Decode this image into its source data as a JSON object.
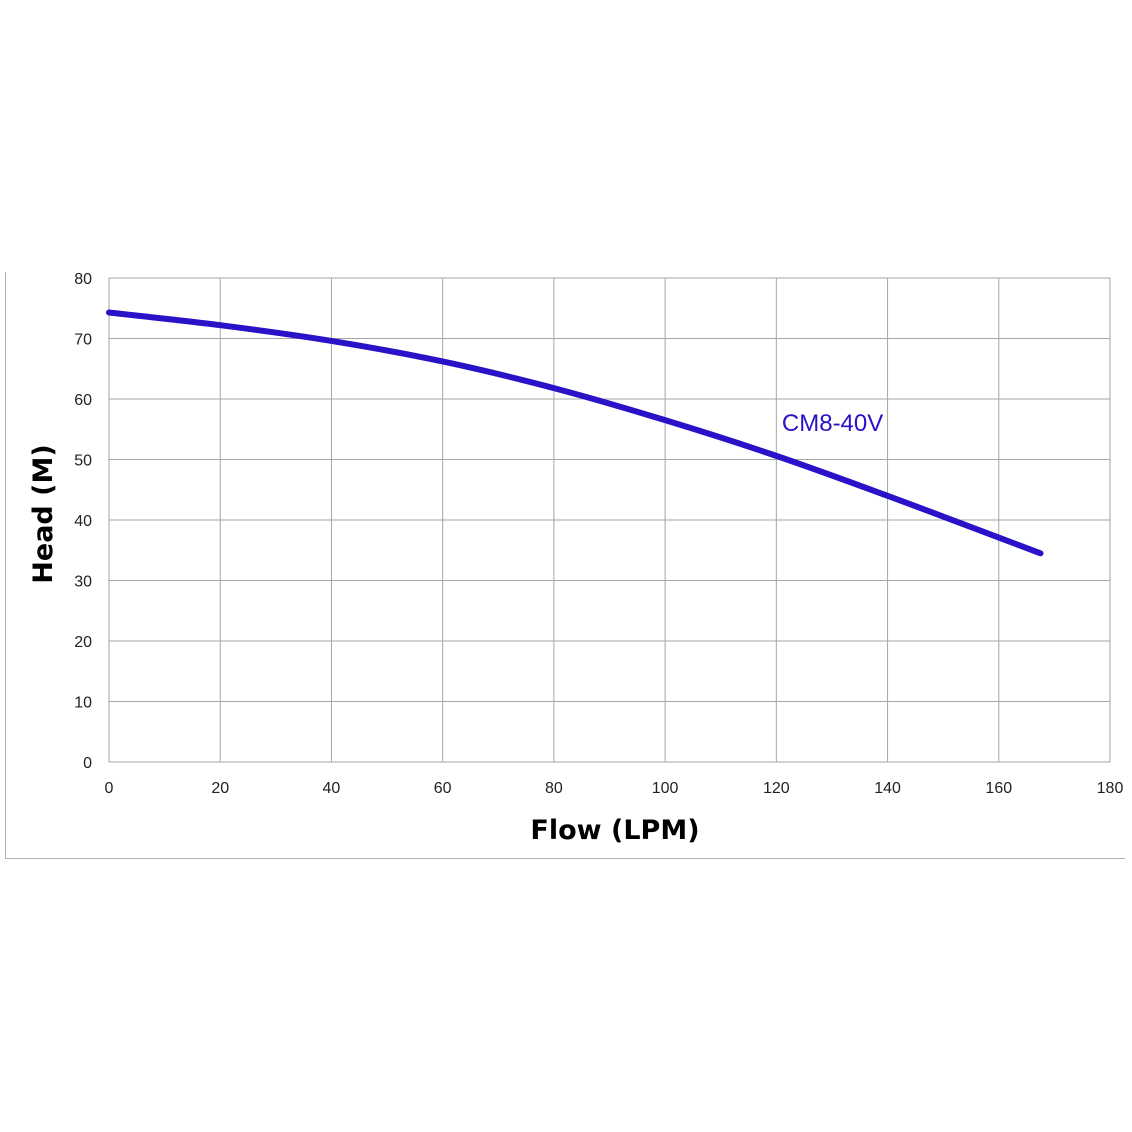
{
  "chart_data": {
    "type": "line",
    "title": "",
    "xlabel": "Flow (LPM)",
    "ylabel": "Head (M)",
    "xlim": [
      0,
      180
    ],
    "ylim": [
      0,
      80
    ],
    "xticks": [
      0,
      20,
      40,
      60,
      80,
      100,
      120,
      140,
      160,
      180
    ],
    "yticks": [
      0,
      10,
      20,
      30,
      40,
      50,
      60,
      70,
      80
    ],
    "grid": true,
    "legend": "none",
    "series": [
      {
        "name": "CM8-40V",
        "color": "#2a12c8",
        "x": [
          0,
          20,
          40,
          60,
          80,
          100,
          120,
          140,
          160,
          167.5
        ],
        "y": [
          74.3,
          72.2,
          69.6,
          66.2,
          61.8,
          56.5,
          50.6,
          44.0,
          37.1,
          34.5
        ]
      }
    ]
  }
}
